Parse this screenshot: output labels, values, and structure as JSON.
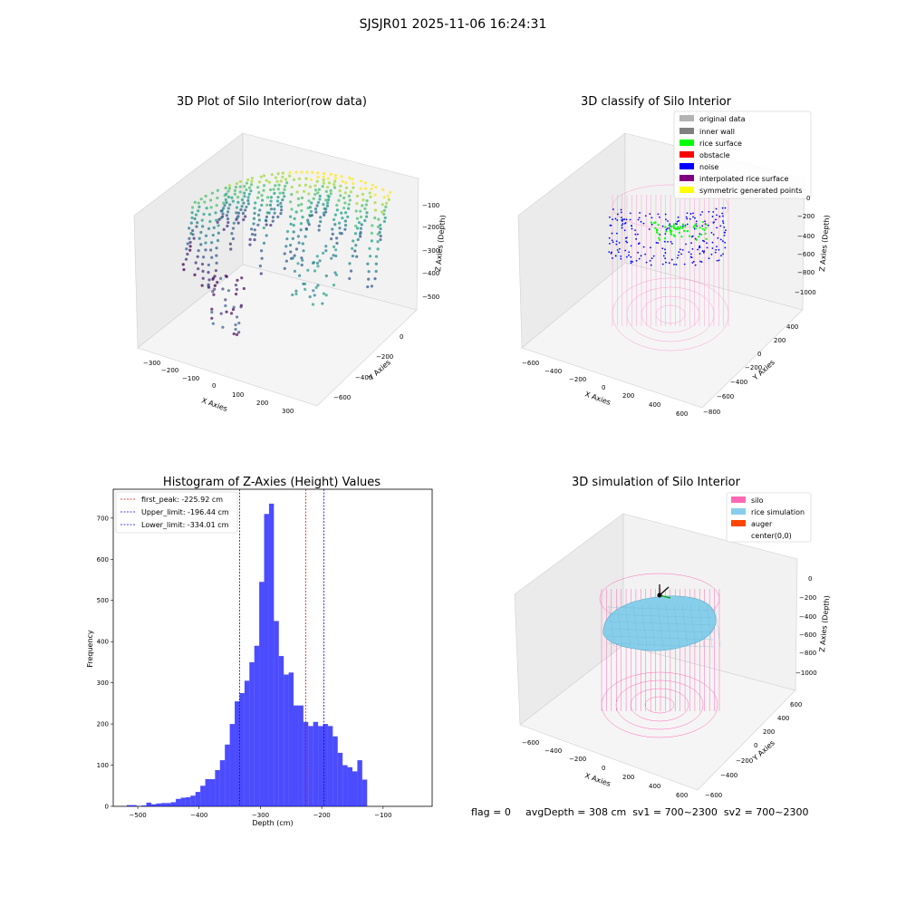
{
  "suptitle": "SJSJR01 2025-11-06 16:24:31",
  "panels": {
    "raw": {
      "title": "3D Plot of Silo Interior(row data)",
      "xlabel": "X Axies",
      "ylabel": "Y Axies",
      "zlabel": "Z Axies (Depth)",
      "xticks": [
        "−300",
        "−200",
        "−100",
        "0",
        "100",
        "200",
        "300"
      ],
      "yticks": [
        "−600",
        "−400",
        "−200",
        "0"
      ],
      "zticks": [
        "−100",
        "−200",
        "−300",
        "−400",
        "−500"
      ]
    },
    "classify": {
      "title": "3D classify of Silo Interior",
      "xlabel": "X Axies",
      "ylabel": "Y Axies",
      "zlabel": "Z Axies (Depth)",
      "xticks": [
        "−600",
        "−400",
        "−200",
        "0",
        "200",
        "400",
        "600"
      ],
      "yticks": [
        "−800",
        "−600",
        "−400",
        "−200",
        "0",
        "200",
        "400"
      ],
      "zticks": [
        "0",
        "−200",
        "−400",
        "−600",
        "−800",
        "−1000"
      ],
      "legend": [
        {
          "label": "original data",
          "color": "#b3b3b3"
        },
        {
          "label": "inner wall",
          "color": "#808080"
        },
        {
          "label": "rice surface",
          "color": "#00ff00"
        },
        {
          "label": "obstacle",
          "color": "#ff0000"
        },
        {
          "label": "noise",
          "color": "#0000ff"
        },
        {
          "label": "interpolated rice surface",
          "color": "#800080"
        },
        {
          "label": "symmetric generated points",
          "color": "#ffff00"
        }
      ]
    },
    "simulation": {
      "title": "3D simulation of Silo Interior",
      "xlabel": "X Axies",
      "ylabel": "Y Axies",
      "zlabel": "Z Axies (Depth)",
      "xticks": [
        "−600",
        "−400",
        "−200",
        "0",
        "200",
        "400",
        "600"
      ],
      "yticks": [
        "−600",
        "−400",
        "−200",
        "0",
        "200",
        "400",
        "600"
      ],
      "zticks": [
        "0",
        "−200",
        "−400",
        "−600",
        "−800",
        "−1000"
      ],
      "legend": [
        {
          "label": "silo",
          "color": "#ff69b4"
        },
        {
          "label": "rice simulation",
          "color": "#87ceeb"
        },
        {
          "label": "auger",
          "color": "#ff4500"
        },
        {
          "label": "center(0,0)",
          "color": ""
        }
      ]
    }
  },
  "chart_data": {
    "type": "bar",
    "title": "Histogram of Z-Axies (Height) Values",
    "xlabel": "Depth (cm)",
    "ylabel": "Frequency",
    "xlim": [
      -540,
      -20
    ],
    "ylim": [
      0,
      770
    ],
    "xticks": [
      -500,
      -400,
      -300,
      -200,
      -100
    ],
    "xtick_labels": [
      "−500",
      "−400",
      "−300",
      "−200",
      "−100"
    ],
    "yticks": [
      0,
      100,
      200,
      300,
      400,
      500,
      600,
      700
    ],
    "bar_color": "#0000ff",
    "bin_start": -518,
    "bin_width": 8.0,
    "values": [
      3,
      3,
      0,
      2,
      9,
      5,
      7,
      8,
      8,
      10,
      18,
      21,
      22,
      26,
      35,
      50,
      66,
      66,
      88,
      112,
      150,
      200,
      255,
      275,
      305,
      350,
      390,
      545,
      710,
      735,
      450,
      365,
      320,
      325,
      245,
      245,
      205,
      195,
      205,
      195,
      200,
      195,
      170,
      130,
      100,
      95,
      85,
      112,
      65
    ],
    "vlines": [
      {
        "x": -225.92,
        "color": "#ff0000",
        "label": "first_peak: -225.92 cm"
      },
      {
        "x": -196.44,
        "color": "#0000ff",
        "label": "Upper_limit: -196.44 cm"
      },
      {
        "x": -334.01,
        "color": "#0000ff",
        "label": "Lower_limit: -334.01 cm"
      }
    ]
  },
  "footer": {
    "flag": "flag = 0",
    "avg": "avgDepth = 308 cm  sv1 = 700~2300  sv2 = 700~2300"
  }
}
